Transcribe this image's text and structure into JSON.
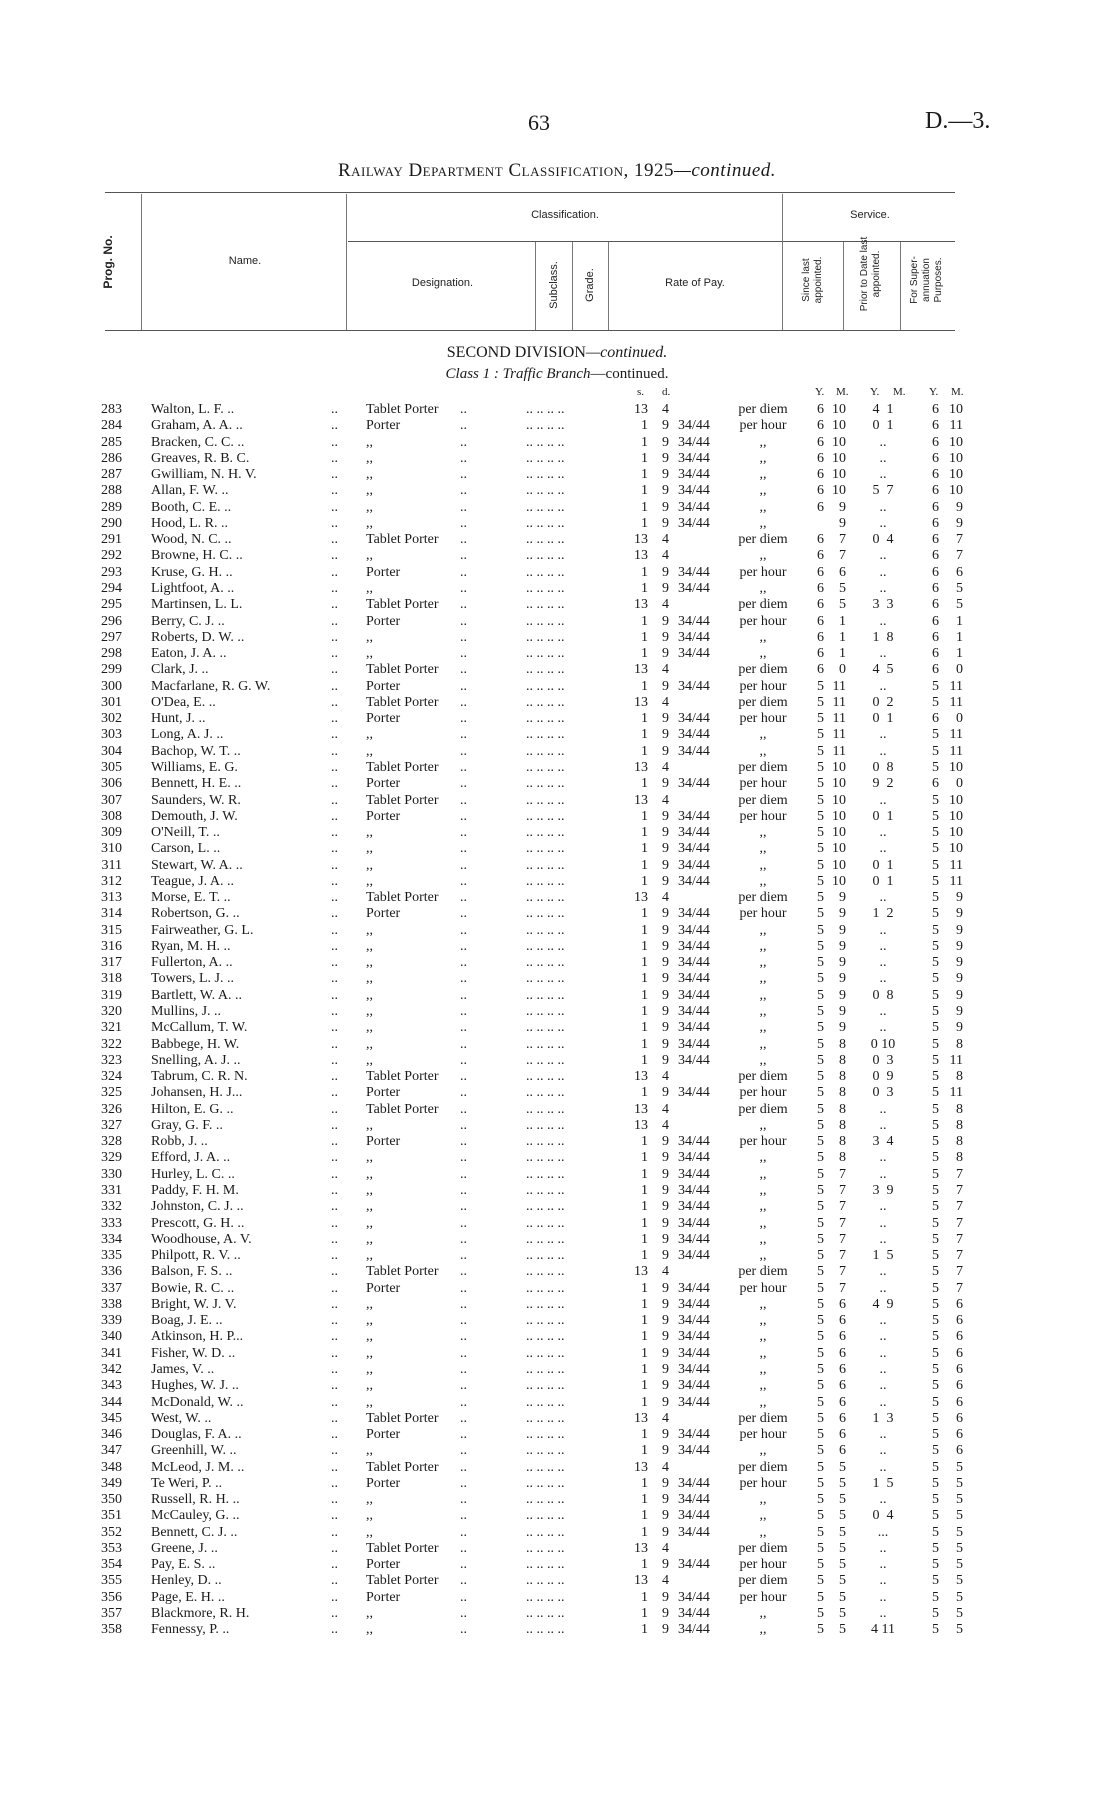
{
  "header": {
    "page_number": "63",
    "doc_ref": "D.—3.",
    "title_main": "Railway Department Classification, 1925",
    "title_suffix": "—continued."
  },
  "table_header": {
    "prog_no": "Prog. No.",
    "name": "Name.",
    "classification": "Classification.",
    "service": "Service.",
    "designation": "Designation.",
    "subclass": "Subclass.",
    "grade": "Grade.",
    "rate_of_pay": "Rate of Pay.",
    "since_last": "Since last appointed.",
    "prior_to_date": "Prior to Date last appointed.",
    "superannuation": "For Super-annuation Purposes."
  },
  "section": {
    "division": "SECOND DIVISION",
    "division_suffix": "—continued.",
    "class_label": "Class 1 :  Traffic Branch",
    "class_suffix": "—continued."
  },
  "units": {
    "s": "s.",
    "d": "d.",
    "y": "Y.",
    "m": "M."
  },
  "leaders": {
    "name_dots": "..",
    "desig_dots": "..",
    "grade_dots": ".. .. .. .."
  },
  "rows": [
    [
      "283",
      "Walton, L. F. ..",
      "Tablet Porter",
      "13",
      "4",
      "",
      "per diem",
      "6",
      "10",
      "4  1",
      "6",
      "10"
    ],
    [
      "284",
      "Graham, A. A. ..",
      "Porter",
      "1",
      "9",
      "34/44",
      "per hour",
      "6",
      "10",
      "0  1",
      "6",
      "11"
    ],
    [
      "285",
      "Bracken, C. C. ..",
      ",,",
      "1",
      "9",
      "34/44",
      ",,",
      "6",
      "10",
      "..",
      "6",
      "10"
    ],
    [
      "286",
      "Greaves, R. B. C.",
      ",,",
      "1",
      "9",
      "34/44",
      ",,",
      "6",
      "10",
      "..",
      "6",
      "10"
    ],
    [
      "287",
      "Gwilliam, N. H. V.",
      ",,",
      "1",
      "9",
      "34/44",
      ",,",
      "6",
      "10",
      "..",
      "6",
      "10"
    ],
    [
      "288",
      "Allan, F. W.   ..",
      ",,",
      "1",
      "9",
      "34/44",
      ",,",
      "6",
      "10",
      "5  7",
      "6",
      "10"
    ],
    [
      "289",
      "Booth, C. E.   ..",
      ",,",
      "1",
      "9",
      "34/44",
      ",,",
      "6",
      "9",
      "..",
      "6",
      "9"
    ],
    [
      "290",
      "Hood, L. R.   ..",
      ",,",
      "1",
      "9",
      "34/44",
      ",,",
      "",
      "9",
      "..",
      "6",
      "9"
    ],
    [
      "291",
      "Wood, N. C.   ..",
      "Tablet Porter",
      "13",
      "4",
      "",
      "per diem",
      "6",
      "7",
      "0  4",
      "6",
      "7"
    ],
    [
      "292",
      "Browne, H. C. ..",
      ",,",
      "13",
      "4",
      "",
      ",,",
      "6",
      "7",
      "..",
      "6",
      "7"
    ],
    [
      "293",
      "Kruse, G. H.   ..",
      "Porter",
      "1",
      "9",
      "34/44",
      "per hour",
      "6",
      "6",
      "..",
      "6",
      "6"
    ],
    [
      "294",
      "Lightfoot, A.   ..",
      ",,",
      "1",
      "9",
      "34/44",
      ",,",
      "6",
      "5",
      "..",
      "6",
      "5"
    ],
    [
      "295",
      "Martinsen, L. L.",
      "Tablet Porter",
      "13",
      "4",
      "",
      "per diem",
      "6",
      "5",
      "3  3",
      "6",
      "5"
    ],
    [
      "296",
      "Berry, C. J.   ..",
      "Porter",
      "1",
      "9",
      "34/44",
      "per hour",
      "6",
      "1",
      "..",
      "6",
      "1"
    ],
    [
      "297",
      "Roberts, D. W. ..",
      ",,",
      "1",
      "9",
      "34/44",
      ",,",
      "6",
      "1",
      "1  8",
      "6",
      "1"
    ],
    [
      "298",
      "Eaton, J. A.   ..",
      ",,",
      "1",
      "9",
      "34/44",
      ",,",
      "6",
      "1",
      "..",
      "6",
      "1"
    ],
    [
      "299",
      "Clark, J.   ..",
      "Tablet Porter",
      "13",
      "4",
      "",
      "per diem",
      "6",
      "0",
      "4  5",
      "6",
      "0"
    ],
    [
      "300",
      "Macfarlane, R. G. W.",
      "Porter",
      "1",
      "9",
      "34/44",
      "per hour",
      "5",
      "11",
      "..",
      "5",
      "11"
    ],
    [
      "301",
      "O'Dea, E.   ..",
      "Tablet Porter",
      "13",
      "4",
      "",
      "per diem",
      "5",
      "11",
      "0  2",
      "5",
      "11"
    ],
    [
      "302",
      "Hunt, J.   ..",
      "Porter",
      "1",
      "9",
      "34/44",
      "per hour",
      "5",
      "11",
      "0  1",
      "6",
      "0"
    ],
    [
      "303",
      "Long, A. J.   ..",
      ",,",
      "1",
      "9",
      "34/44",
      ",,",
      "5",
      "11",
      "..",
      "5",
      "11"
    ],
    [
      "304",
      "Bachop, W. T. ..",
      ",,",
      "1",
      "9",
      "34/44",
      ",,",
      "5",
      "11",
      "..",
      "5",
      "11"
    ],
    [
      "305",
      "Williams, E. G.",
      "Tablet Porter",
      "13",
      "4",
      "",
      "per diem",
      "5",
      "10",
      "0  8",
      "5",
      "10"
    ],
    [
      "306",
      "Bennett, H. E. ..",
      "Porter",
      "1",
      "9",
      "34/44",
      "per hour",
      "5",
      "10",
      "9  2",
      "6",
      "0"
    ],
    [
      "307",
      "Saunders, W. R.",
      "Tablet Porter",
      "13",
      "4",
      "",
      "per diem",
      "5",
      "10",
      "..",
      "5",
      "10"
    ],
    [
      "308",
      "Demouth, J. W.",
      "Porter",
      "1",
      "9",
      "34/44",
      "per hour",
      "5",
      "10",
      "0  1",
      "5",
      "10"
    ],
    [
      "309",
      "O'Neill, T.   ..",
      ",,",
      "1",
      "9",
      "34/44",
      ",,",
      "5",
      "10",
      "..",
      "5",
      "10"
    ],
    [
      "310",
      "Carson, L.   ..",
      ",,",
      "1",
      "9",
      "34/44",
      ",,",
      "5",
      "10",
      "..",
      "5",
      "10"
    ],
    [
      "311",
      "Stewart, W. A. ..",
      ",,",
      "1",
      "9",
      "34/44",
      ",,",
      "5",
      "10",
      "0  1",
      "5",
      "11"
    ],
    [
      "312",
      "Teague, J. A.   ..",
      ",,",
      "1",
      "9",
      "34/44",
      ",,",
      "5",
      "10",
      "0  1",
      "5",
      "11"
    ],
    [
      "313",
      "Morse, E. T.   ..",
      "Tablet Porter",
      "13",
      "4",
      "",
      "per diem",
      "5",
      "9",
      "..",
      "5",
      "9"
    ],
    [
      "314",
      "Robertson, G. ..",
      "Porter",
      "1",
      "9",
      "34/44",
      "per hour",
      "5",
      "9",
      "1  2",
      "5",
      "9"
    ],
    [
      "315",
      "Fairweather, G. L.",
      ",,",
      "1",
      "9",
      "34/44",
      ",,",
      "5",
      "9",
      "..",
      "5",
      "9"
    ],
    [
      "316",
      "Ryan, M. H.   ..",
      ",,",
      "1",
      "9",
      "34/44",
      ",,",
      "5",
      "9",
      "..",
      "5",
      "9"
    ],
    [
      "317",
      "Fullerton, A.   ..",
      ",,",
      "1",
      "9",
      "34/44",
      ",,",
      "5",
      "9",
      "..",
      "5",
      "9"
    ],
    [
      "318",
      "Towers, L. J.   ..",
      ",,",
      "1",
      "9",
      "34/44",
      ",,",
      "5",
      "9",
      "..",
      "5",
      "9"
    ],
    [
      "319",
      "Bartlett, W. A. ..",
      ",,",
      "1",
      "9",
      "34/44",
      ",,",
      "5",
      "9",
      "0  8",
      "5",
      "9"
    ],
    [
      "320",
      "Mullins, J.   ..",
      ",,",
      "1",
      "9",
      "34/44",
      ",,",
      "5",
      "9",
      "..",
      "5",
      "9"
    ],
    [
      "321",
      "McCallum, T. W.",
      ",,",
      "1",
      "9",
      "34/44",
      ",,",
      "5",
      "9",
      "..",
      "5",
      "9"
    ],
    [
      "322",
      "Babbege, H. W.",
      ",,",
      "1",
      "9",
      "34/44",
      ",,",
      "5",
      "8",
      "0 10",
      "5",
      "8"
    ],
    [
      "323",
      "Snelling, A. J. ..",
      ",,",
      "1",
      "9",
      "34/44",
      ",,",
      "5",
      "8",
      "0  3",
      "5",
      "11"
    ],
    [
      "324",
      "Tabrum, C. R. N.",
      "Tablet Porter",
      "13",
      "4",
      "",
      "per diem",
      "5",
      "8",
      "0  9",
      "5",
      "8"
    ],
    [
      "325",
      "Johansen, H. J...",
      "Porter",
      "1",
      "9",
      "34/44",
      "per hour",
      "5",
      "8",
      "0  3",
      "5",
      "11"
    ],
    [
      "326",
      "Hilton, E. G.   ..",
      "Tablet Porter",
      "13",
      "4",
      "",
      "per diem",
      "5",
      "8",
      "..",
      "5",
      "8"
    ],
    [
      "327",
      "Gray, G. F.   ..",
      ",,",
      "13",
      "4",
      "",
      ",,",
      "5",
      "8",
      "..",
      "5",
      "8"
    ],
    [
      "328",
      "Robb, J.   ..",
      "Porter",
      "1",
      "9",
      "34/44",
      "per hour",
      "5",
      "8",
      "3  4",
      "5",
      "8"
    ],
    [
      "329",
      "Efford, J. A.   ..",
      ",,",
      "1",
      "9",
      "34/44",
      ",,",
      "5",
      "8",
      "..",
      "5",
      "8"
    ],
    [
      "330",
      "Hurley, L. C.   ..",
      ",,",
      "1",
      "9",
      "34/44",
      ",,",
      "5",
      "7",
      "..",
      "5",
      "7"
    ],
    [
      "331",
      "Paddy, F. H. M.",
      ",,",
      "1",
      "9",
      "34/44",
      ",,",
      "5",
      "7",
      "3  9",
      "5",
      "7"
    ],
    [
      "332",
      "Johnston, C. J. ..",
      ",,",
      "1",
      "9",
      "34/44",
      ",,",
      "5",
      "7",
      "..",
      "5",
      "7"
    ],
    [
      "333",
      "Prescott, G. H. ..",
      ",,",
      "1",
      "9",
      "34/44",
      ",,",
      "5",
      "7",
      "..",
      "5",
      "7"
    ],
    [
      "334",
      "Woodhouse, A. V.",
      ",,",
      "1",
      "9",
      "34/44",
      ",,",
      "5",
      "7",
      "..",
      "5",
      "7"
    ],
    [
      "335",
      "Philpott, R. V. ..",
      ",,",
      "1",
      "9",
      "34/44",
      ",,",
      "5",
      "7",
      "1  5",
      "5",
      "7"
    ],
    [
      "336",
      "Balson, F. S.   ..",
      "Tablet Porter",
      "13",
      "4",
      "",
      "per diem",
      "5",
      "7",
      "..",
      "5",
      "7"
    ],
    [
      "337",
      "Bowie, R. C.   ..",
      "Porter",
      "1",
      "9",
      "34/44",
      "per hour",
      "5",
      "7",
      "..",
      "5",
      "7"
    ],
    [
      "338",
      "Bright, W. J. V.",
      ",,",
      "1",
      "9",
      "34/44",
      ",,",
      "5",
      "6",
      "4  9",
      "5",
      "6"
    ],
    [
      "339",
      "Boag, J. E.   ..",
      ",,",
      "1",
      "9",
      "34/44",
      ",,",
      "5",
      "6",
      "..",
      "5",
      "6"
    ],
    [
      "340",
      "Atkinson, H. P...",
      ",,",
      "1",
      "9",
      "34/44",
      ",,",
      "5",
      "6",
      "..",
      "5",
      "6"
    ],
    [
      "341",
      "Fisher, W. D.   ..",
      ",,",
      "1",
      "9",
      "34/44",
      ",,",
      "5",
      "6",
      "..",
      "5",
      "6"
    ],
    [
      "342",
      "James, V.   ..",
      ",,",
      "1",
      "9",
      "34/44",
      ",,",
      "5",
      "6",
      "..",
      "5",
      "6"
    ],
    [
      "343",
      "Hughes, W. J. ..",
      ",,",
      "1",
      "9",
      "34/44",
      ",,",
      "5",
      "6",
      "..",
      "5",
      "6"
    ],
    [
      "344",
      "McDonald, W. ..",
      ",,",
      "1",
      "9",
      "34/44",
      ",,",
      "5",
      "6",
      "..",
      "5",
      "6"
    ],
    [
      "345",
      "West, W.   ..",
      "Tablet Porter",
      "13",
      "4",
      "",
      "per diem",
      "5",
      "6",
      "1  3",
      "5",
      "6"
    ],
    [
      "346",
      "Douglas, F. A. ..",
      "Porter",
      "1",
      "9",
      "34/44",
      "per hour",
      "5",
      "6",
      "..",
      "5",
      "6"
    ],
    [
      "347",
      "Greenhill, W.   ..",
      ",,",
      "1",
      "9",
      "34/44",
      ",,",
      "5",
      "6",
      "..",
      "5",
      "6"
    ],
    [
      "348",
      "McLeod, J. M. ..",
      "Tablet Porter",
      "13",
      "4",
      "",
      "per diem",
      "5",
      "5",
      "..",
      "5",
      "5"
    ],
    [
      "349",
      "Te Weri, P.   ..",
      "Porter",
      "1",
      "9",
      "34/44",
      "per hour",
      "5",
      "5",
      "1  5",
      "5",
      "5"
    ],
    [
      "350",
      "Russell, R. H. ..",
      ",,",
      "1",
      "9",
      "34/44",
      ",,",
      "5",
      "5",
      "..",
      "5",
      "5"
    ],
    [
      "351",
      "McCauley, G.   ..",
      ",,",
      "1",
      "9",
      "34/44",
      ",,",
      "5",
      "5",
      "0  4",
      "5",
      "5"
    ],
    [
      "352",
      "Bennett, C. J. ..",
      ",,",
      "1",
      "9",
      "34/44",
      ",,",
      "5",
      "5",
      "...",
      "5",
      "5"
    ],
    [
      "353",
      "Greene, J.   ..",
      "Tablet Porter",
      "13",
      "4",
      "",
      "per diem",
      "5",
      "5",
      "..",
      "5",
      "5"
    ],
    [
      "354",
      "Pay, E. S.   ..",
      "Porter",
      "1",
      "9",
      "34/44",
      "per hour",
      "5",
      "5",
      "..",
      "5",
      "5"
    ],
    [
      "355",
      "Henley, D.   ..",
      "Tablet Porter",
      "13",
      "4",
      "",
      "per diem",
      "5",
      "5",
      "..",
      "5",
      "5"
    ],
    [
      "356",
      "Page, E. H.   ..",
      "Porter",
      "1",
      "9",
      "34/44",
      "per hour",
      "5",
      "5",
      "..",
      "5",
      "5"
    ],
    [
      "357",
      "Blackmore, R. H.",
      ",,",
      "1",
      "9",
      "34/44",
      ",,",
      "5",
      "5",
      "..",
      "5",
      "5"
    ],
    [
      "358",
      "Fennessy, P.   ..",
      ",,",
      "1",
      "9",
      "34/44",
      ",,",
      "5",
      "5",
      "4 11",
      "5",
      "5"
    ]
  ]
}
